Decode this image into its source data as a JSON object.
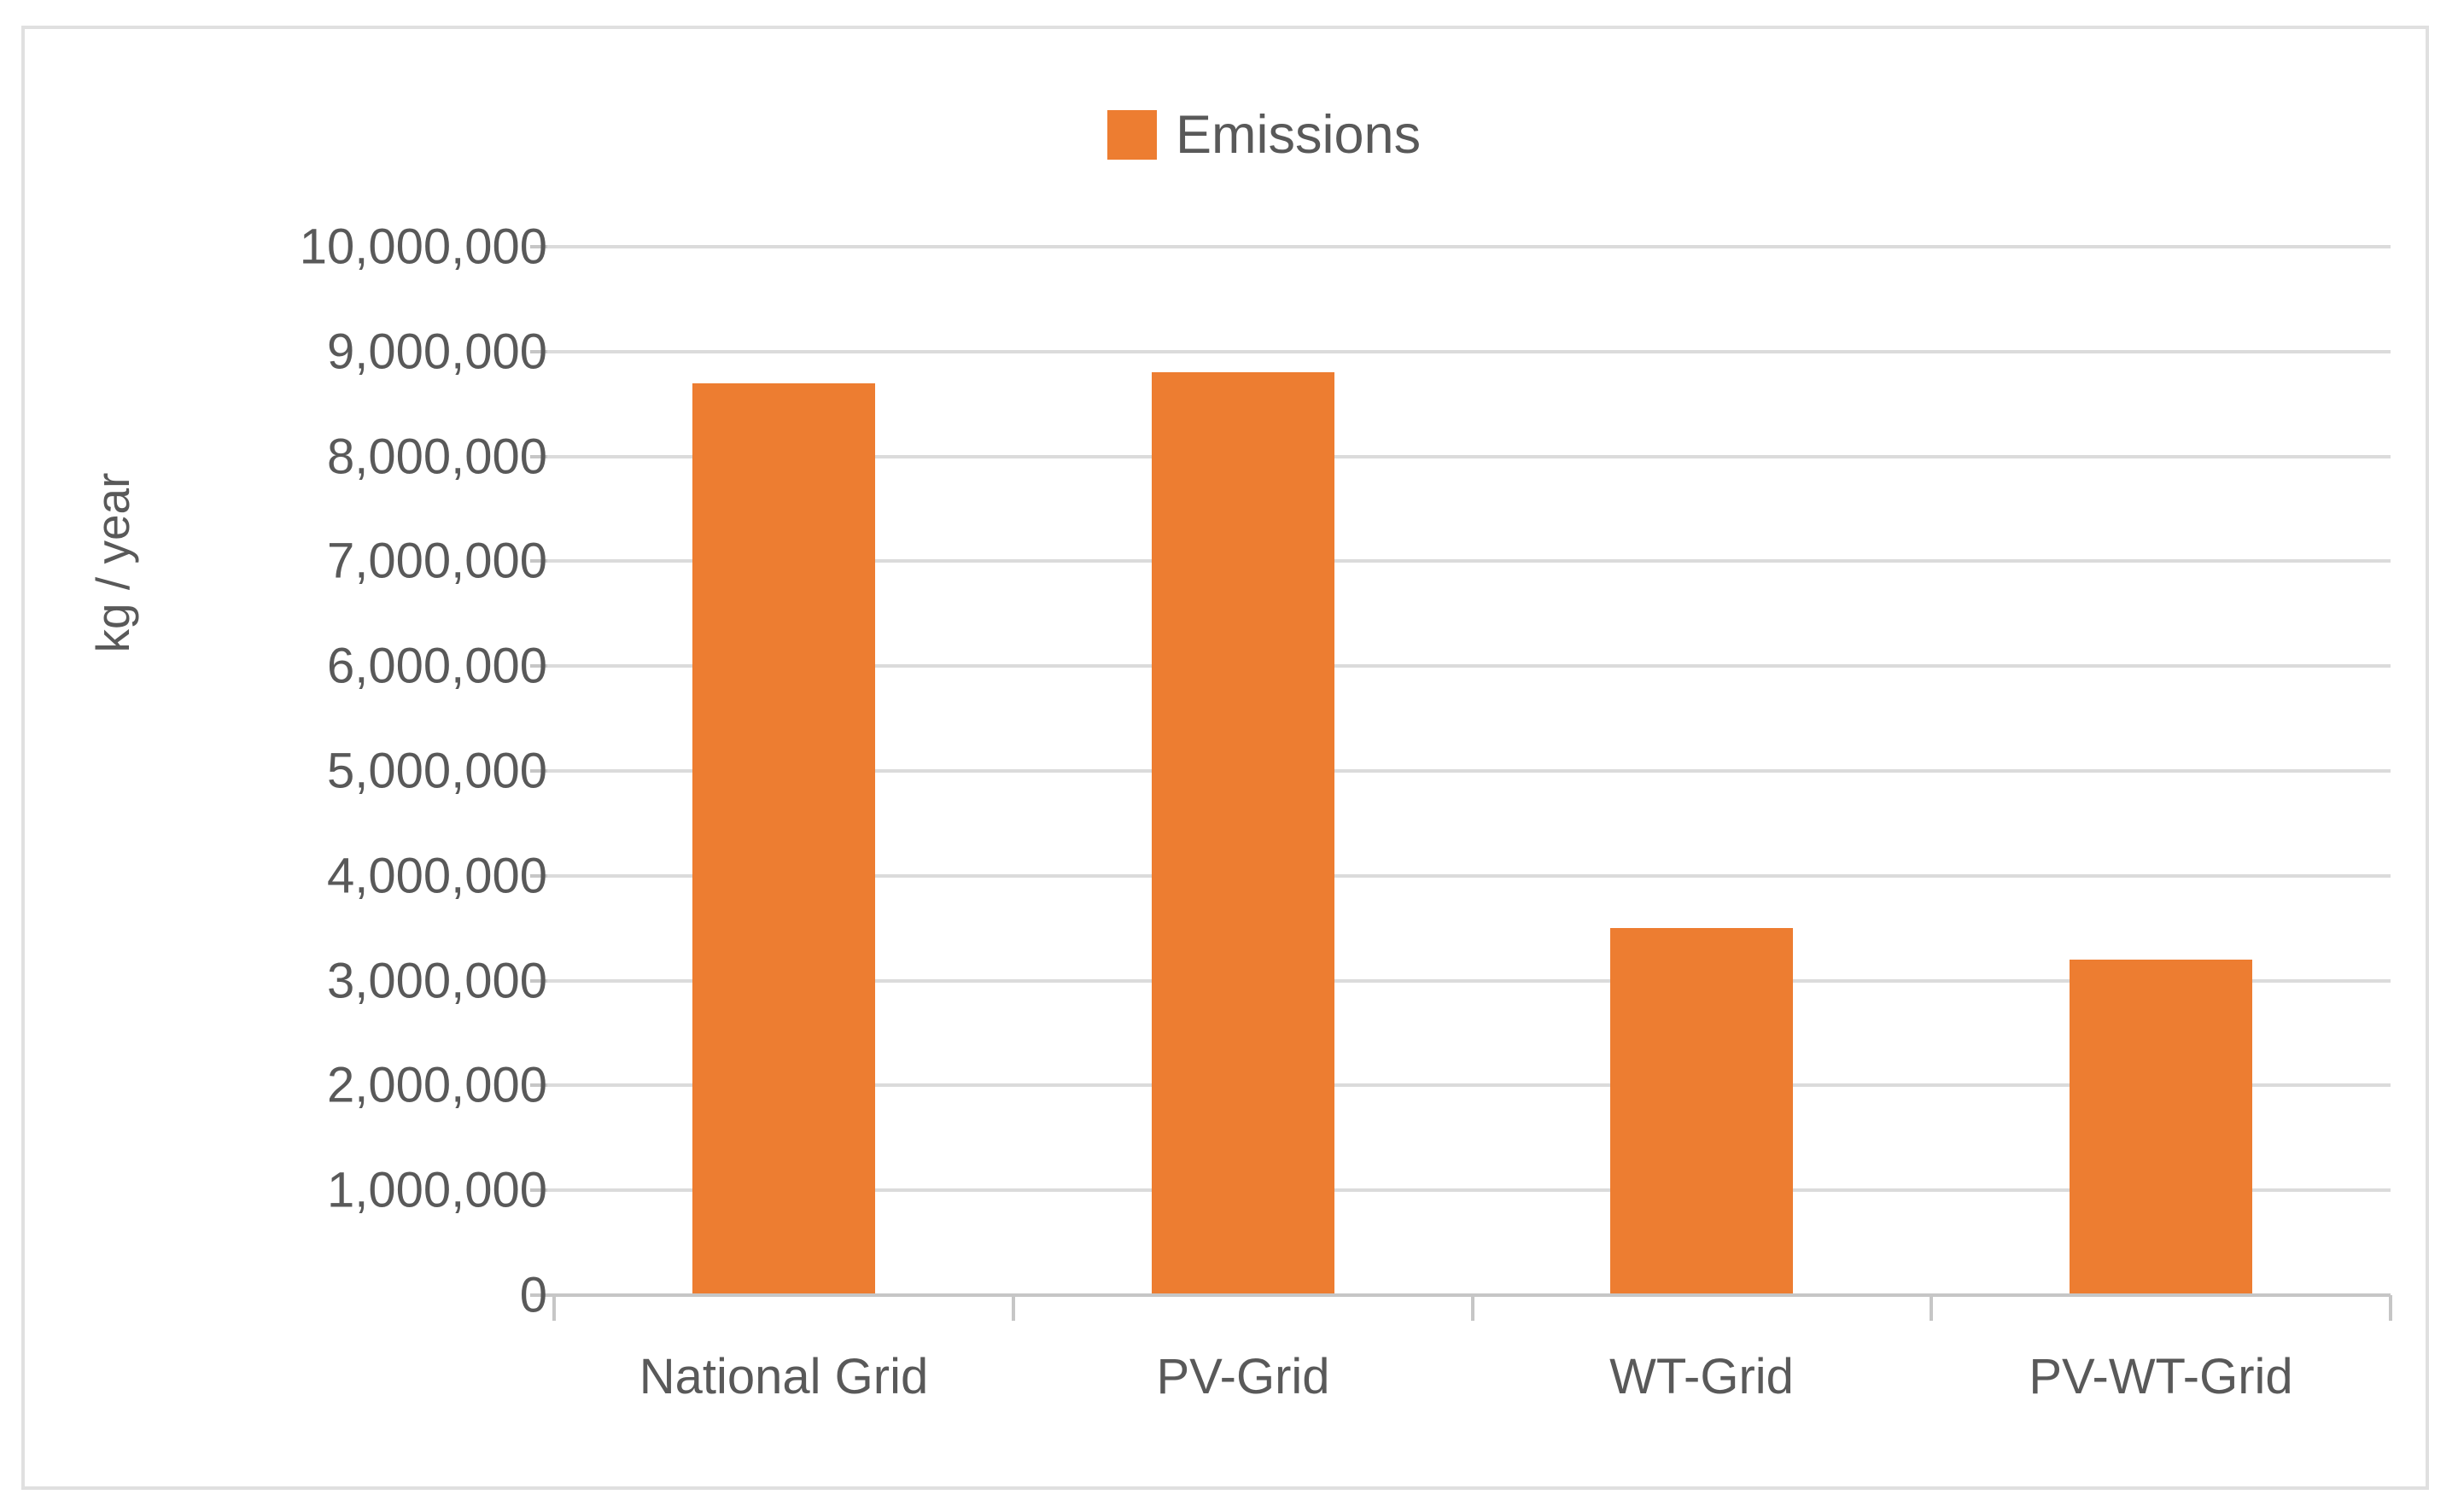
{
  "chart_data": {
    "type": "bar",
    "categories": [
      "National Grid",
      "PV-Grid",
      "WT-Grid",
      "PV-WT-Grid"
    ],
    "series": [
      {
        "name": "Emissions",
        "values": [
          8700000,
          8800000,
          3500000,
          3200000
        ]
      }
    ],
    "title": "",
    "xlabel": "",
    "ylabel": "kg / year",
    "ylim": [
      0,
      10000000
    ],
    "ytick_step": 1000000,
    "ytick_labels": [
      "0",
      "1,000,000",
      "2,000,000",
      "3,000,000",
      "4,000,000",
      "5,000,000",
      "6,000,000",
      "7,000,000",
      "8,000,000",
      "9,000,000",
      "10,000,000"
    ],
    "grid": true,
    "legend_position": "top-center",
    "legend_entries": [
      "Emissions"
    ]
  },
  "colors": {
    "bar": "#ED7D31",
    "label_text": "#595959",
    "gridline": "#DBDBDB",
    "axis_line": "#C6C6C6",
    "frame_border": "#E0E0E0",
    "background": "#FFFFFF"
  }
}
